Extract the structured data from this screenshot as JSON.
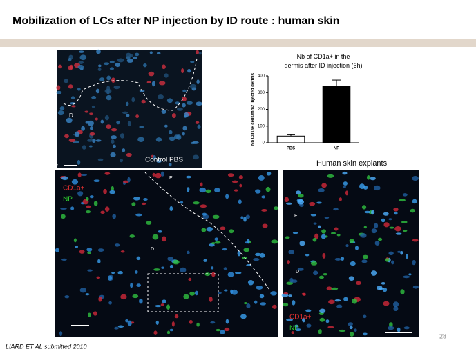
{
  "header": {
    "title": "Mobilization of LCs after NP injection by ID route : human skin"
  },
  "images": {
    "top": {
      "labels": [
        "D",
        "F",
        "Control PBS"
      ]
    },
    "caption": "Human skin explants",
    "left": {
      "labels": [
        "CD1a+",
        "NP",
        "E",
        "D"
      ]
    },
    "right": {
      "labels": [
        "E",
        "D",
        "CD1a+",
        "NP"
      ]
    }
  },
  "chart_data": {
    "type": "bar",
    "title": "Nb of CD1a+ in the dermis after ID injection (6h)",
    "ylabel": "Nb CD1a+ cells/mm2 injected dermis",
    "categories": [
      "PBS",
      "NP"
    ],
    "values": [
      40,
      340
    ],
    "errors": [
      8,
      35
    ],
    "colors": [
      "#ffffff",
      "#000000"
    ],
    "ylim": [
      0,
      400
    ],
    "yticks": [
      0,
      100,
      200,
      300,
      400
    ]
  },
  "footer": {
    "reference": "LIARD ET AL submitted 2010",
    "page": "28"
  }
}
